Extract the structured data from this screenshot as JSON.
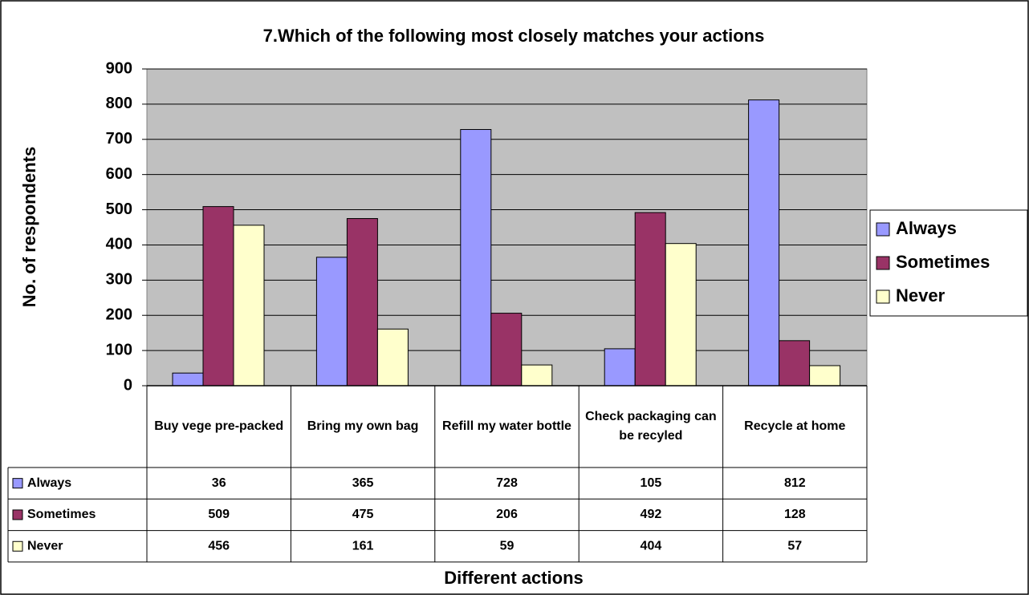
{
  "chart_data": {
    "type": "bar",
    "title": "7.Which of the following most closely matches your actions",
    "x_label": "Different actions",
    "y_label": "No. of respondents",
    "categories": [
      "Buy vege pre-packed",
      "Bring my own bag",
      "Refill my water bottle",
      "Check packaging can be recyled",
      "Recycle at home"
    ],
    "series": [
      {
        "name": "Always",
        "color": "#9999ff",
        "values": [
          36,
          365,
          728,
          105,
          812
        ]
      },
      {
        "name": "Sometimes",
        "color": "#993366",
        "values": [
          509,
          475,
          206,
          492,
          128
        ]
      },
      {
        "name": "Never",
        "color": "#ffffcc",
        "values": [
          456,
          161,
          59,
          404,
          57
        ]
      }
    ],
    "ylim": [
      0,
      900
    ],
    "yticks": [
      0,
      100,
      200,
      300,
      400,
      500,
      600,
      700,
      800,
      900
    ],
    "grid": true,
    "legend": "right",
    "plot_background": "#c0c0c0"
  }
}
